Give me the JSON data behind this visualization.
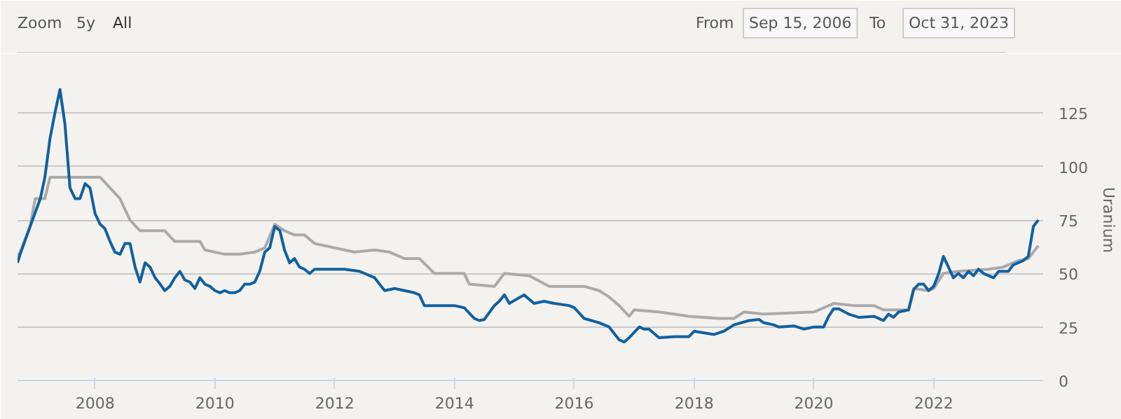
{
  "chart_data": {
    "type": "line",
    "y2label": "Uranium",
    "annotations": [
      "Zoom",
      "5y",
      "All",
      "From",
      "Sep 15, 2006",
      "To",
      "Oct 31, 2023"
    ],
    "xlim": [
      "2006-09-15",
      "2023-10-31"
    ],
    "xticks": [
      "2008",
      "2010",
      "2012",
      "2014",
      "2016",
      "2018",
      "2020",
      "2022"
    ],
    "ylim": [
      0,
      150
    ],
    "yticks": [
      0,
      25,
      50,
      75,
      100,
      125
    ],
    "grid": "y",
    "series": [
      {
        "color": "#aaaaaa",
        "x": [
          "2006-09-15",
          "2006-10",
          "2006-12",
          "2007-01",
          "2007-03",
          "2007-04",
          "2008-02",
          "2008-04",
          "2008-06",
          "2008-07",
          "2008-08",
          "2008-10",
          "2009-03",
          "2009-05",
          "2009-10",
          "2009-11",
          "2010-03",
          "2010-06",
          "2010-09",
          "2010-11",
          "2011-01",
          "2011-03",
          "2011-05",
          "2011-07",
          "2011-09",
          "2012-01",
          "2012-05",
          "2012-09",
          "2012-12",
          "2013-03",
          "2013-06",
          "2013-09",
          "2014-03",
          "2014-04",
          "2014-09",
          "2014-11",
          "2015-04",
          "2015-08",
          "2016-03",
          "2016-06",
          "2016-08",
          "2016-10",
          "2016-12",
          "2017-01",
          "2017-06",
          "2017-09",
          "2017-12",
          "2018-06",
          "2018-09",
          "2018-11",
          "2019-03",
          "2020-01",
          "2020-05",
          "2020-09",
          "2021-01",
          "2021-03",
          "2021-08",
          "2021-09",
          "2021-12",
          "2022-01",
          "2022-03",
          "2022-06",
          "2022-12",
          "2023-03",
          "2023-06",
          "2023-08",
          "2023-10"
        ],
        "values": [
          58,
          60,
          72,
          85,
          85,
          95,
          95,
          90,
          85,
          80,
          75,
          70,
          70,
          65,
          65,
          61,
          59,
          59,
          60,
          62,
          73,
          70,
          68,
          68,
          64,
          62,
          60,
          61,
          60,
          57,
          57,
          50,
          50,
          45,
          44,
          50,
          49,
          44,
          44,
          42,
          39,
          35,
          30,
          33,
          32,
          31,
          30,
          29,
          29,
          32,
          31,
          32,
          36,
          35,
          35,
          33,
          33,
          43,
          42,
          43,
          50,
          51,
          52,
          53,
          56,
          57,
          63
        ]
      },
      {
        "color": "#1060a0",
        "x": [
          "2006-09-15",
          "2006-10",
          "2006-12",
          "2007-02",
          "2007-03",
          "2007-04",
          "2007-05",
          "2007-06",
          "2007-07",
          "2007-08",
          "2007-09",
          "2007-10",
          "2007-11",
          "2007-12",
          "2008-01",
          "2008-02",
          "2008-03",
          "2008-04",
          "2008-05",
          "2008-06",
          "2008-07",
          "2008-08",
          "2008-09",
          "2008-10",
          "2008-11",
          "2008-12",
          "2009-01",
          "2009-02",
          "2009-03",
          "2009-04",
          "2009-05",
          "2009-06",
          "2009-07",
          "2009-08",
          "2009-09",
          "2009-10",
          "2009-11",
          "2009-12",
          "2010-01",
          "2010-02",
          "2010-03",
          "2010-04",
          "2010-05",
          "2010-06",
          "2010-07",
          "2010-08",
          "2010-09",
          "2010-10",
          "2010-11",
          "2010-12",
          "2011-01",
          "2011-02",
          "2011-03",
          "2011-04",
          "2011-05",
          "2011-06",
          "2011-07",
          "2011-08",
          "2011-09",
          "2011-12",
          "2012-03",
          "2012-06",
          "2012-09",
          "2012-10",
          "2012-11",
          "2013-01",
          "2013-03",
          "2013-05",
          "2013-06",
          "2013-07",
          "2013-09",
          "2013-11",
          "2014-01",
          "2014-03",
          "2014-05",
          "2014-06",
          "2014-07",
          "2014-09",
          "2014-10",
          "2014-11",
          "2014-12",
          "2015-03",
          "2015-05",
          "2015-07",
          "2015-09",
          "2015-12",
          "2016-01",
          "2016-03",
          "2016-06",
          "2016-08",
          "2016-10",
          "2016-11",
          "2016-12",
          "2017-02",
          "2017-03",
          "2017-04",
          "2017-06",
          "2017-09",
          "2017-12",
          "2018-01",
          "2018-05",
          "2018-07",
          "2018-09",
          "2018-12",
          "2019-02",
          "2019-03",
          "2019-05",
          "2019-06",
          "2019-09",
          "2019-11",
          "2020-01",
          "2020-03",
          "2020-04",
          "2020-05",
          "2020-06",
          "2020-08",
          "2020-10",
          "2021-01",
          "2021-03",
          "2021-04",
          "2021-05",
          "2021-06",
          "2021-08",
          "2021-09",
          "2021-10",
          "2021-11",
          "2021-12",
          "2022-01",
          "2022-02",
          "2022-03",
          "2022-04",
          "2022-05",
          "2022-06",
          "2022-07",
          "2022-08",
          "2022-09",
          "2022-10",
          "2022-11",
          "2023-01",
          "2023-02",
          "2023-04",
          "2023-05",
          "2023-07",
          "2023-08",
          "2023-09",
          "2023-10"
        ],
        "values": [
          55,
          59,
          72,
          85,
          95,
          113,
          125,
          136,
          120,
          90,
          85,
          85,
          92,
          90,
          78,
          73,
          71,
          65,
          60,
          59,
          64,
          64,
          53,
          46,
          55,
          53,
          48,
          45,
          42,
          44,
          48,
          51,
          47,
          46,
          43,
          48,
          45,
          44,
          42,
          41,
          42,
          41,
          41,
          42,
          45,
          45,
          46,
          51,
          60,
          62,
          72,
          70,
          61,
          55,
          57,
          53,
          52,
          50,
          52,
          52,
          52,
          51,
          48,
          45,
          42,
          43,
          42,
          41,
          40,
          35,
          35,
          35,
          35,
          34,
          29,
          28,
          28.5,
          35,
          37,
          40,
          36,
          40,
          36,
          37,
          36,
          35,
          34,
          29,
          27,
          25,
          19,
          18,
          20,
          25,
          24,
          24,
          20,
          20.5,
          20.5,
          23,
          21.5,
          23,
          26,
          28,
          28.5,
          27,
          26,
          25,
          25.5,
          24,
          25,
          25,
          30,
          33.5,
          33.5,
          31,
          29.5,
          30,
          28,
          31,
          29.5,
          32,
          33,
          42.5,
          45,
          45,
          42,
          44,
          50,
          58,
          53,
          48,
          50,
          48,
          51,
          49,
          52,
          50,
          48,
          51,
          51,
          54,
          56,
          58,
          72,
          75
        ]
      }
    ]
  }
}
